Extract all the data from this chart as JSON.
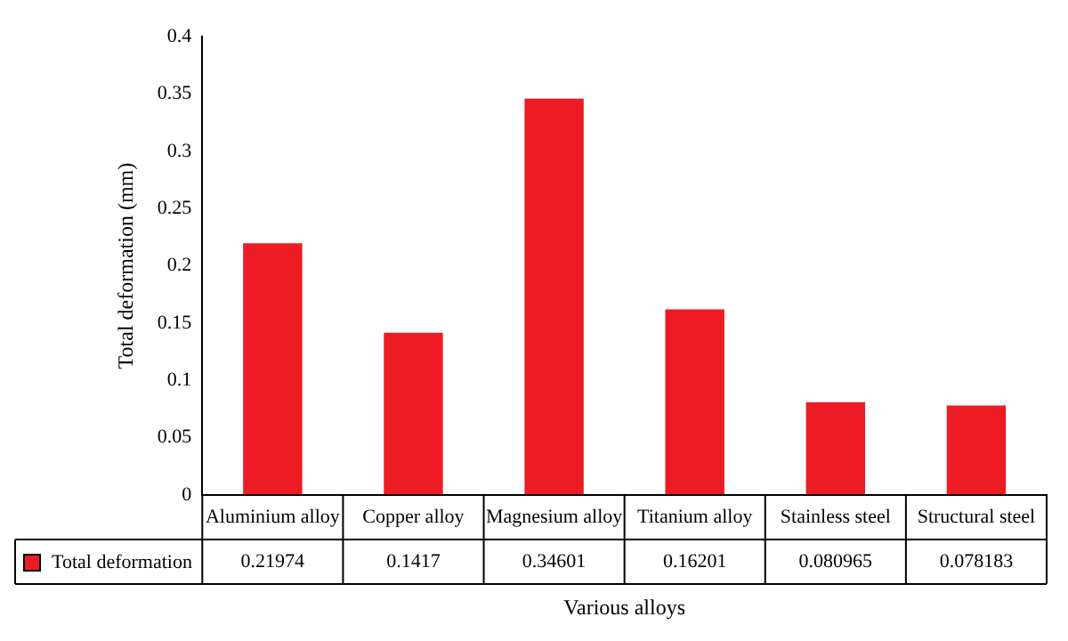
{
  "chart_data": {
    "type": "bar",
    "categories": [
      "Aluminium alloy",
      "Copper alloy",
      "Magnesium alloy",
      "Titanium alloy",
      "Stainless steel",
      "Structural steel"
    ],
    "series": [
      {
        "name": "Total deformation",
        "color": "#ed1c24",
        "values": [
          0.21974,
          0.1417,
          0.34601,
          0.16201,
          0.080965,
          0.078183
        ]
      }
    ],
    "ylabel": "Total deformation (mm)",
    "xlabel": "Various alloys",
    "ylim": [
      0,
      0.4
    ],
    "yticks": [
      0,
      0.05,
      0.1,
      0.15,
      0.2,
      0.25,
      0.3,
      0.35,
      0.4
    ],
    "grid": false,
    "legend": "bottom left",
    "data_labels": true
  }
}
